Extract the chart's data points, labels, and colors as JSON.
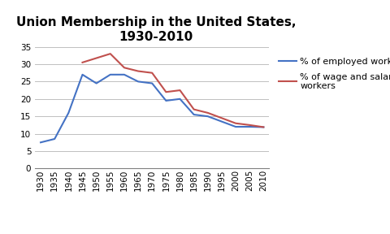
{
  "title": "Union Membership in the United States,\n1930-2010",
  "years": [
    1930,
    1935,
    1940,
    1945,
    1950,
    1955,
    1960,
    1965,
    1970,
    1975,
    1980,
    1985,
    1990,
    1995,
    2000,
    2005,
    2010
  ],
  "employed_workers": [
    7.5,
    8.5,
    16.0,
    27.0,
    24.5,
    27.0,
    27.0,
    25.0,
    24.5,
    19.5,
    20.0,
    15.5,
    15.0,
    13.5,
    12.0,
    12.0,
    11.9
  ],
  "wage_salary_workers": [
    null,
    null,
    null,
    30.5,
    null,
    33.0,
    29.0,
    28.0,
    27.5,
    22.0,
    22.5,
    17.0,
    16.0,
    14.5,
    13.0,
    12.5,
    11.9
  ],
  "employed_color": "#4472C4",
  "wage_salary_color": "#C0504D",
  "legend_employed": "% of employed workers",
  "legend_wage": "% of wage and salary\nworkers",
  "ylim": [
    0,
    35
  ],
  "yticks": [
    0,
    5,
    10,
    15,
    20,
    25,
    30,
    35
  ],
  "bg_color": "#FFFFFF",
  "plot_bg_color": "#FFFFFF",
  "grid_color": "#C0C0C0",
  "title_fontsize": 11,
  "legend_fontsize": 8,
  "tick_fontsize": 7.5
}
